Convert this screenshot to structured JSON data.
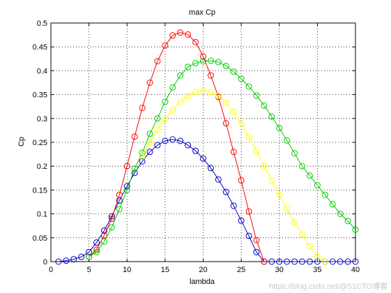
{
  "chart_data": {
    "type": "line",
    "title": "max Cp",
    "xlabel": "lambda",
    "ylabel": "Cp",
    "xlim": [
      0,
      40
    ],
    "ylim": [
      0,
      0.5
    ],
    "xticks": [
      0,
      5,
      10,
      15,
      20,
      25,
      30,
      35,
      40
    ],
    "yticks": [
      0,
      0.05,
      0.1,
      0.15,
      0.2,
      0.25,
      0.3,
      0.35,
      0.4,
      0.45,
      0.5
    ],
    "xtick_labels": [
      "0",
      "5",
      "10",
      "15",
      "20",
      "25",
      "30",
      "35",
      "40"
    ],
    "ytick_labels": [
      "0",
      "0.05",
      "0.1",
      "0.15",
      "0.2",
      "0.25",
      "0.3",
      "0.35",
      "0.4",
      "0.45",
      "0.5"
    ],
    "grid": true,
    "marker": "circle",
    "series": [
      {
        "color": "#0000bf",
        "x": [
          1,
          2,
          3,
          4,
          5,
          6,
          7,
          8,
          9,
          10,
          11,
          12,
          13,
          14,
          15,
          16,
          17,
          18,
          19,
          20,
          21,
          22,
          23,
          24,
          25,
          26,
          27,
          28,
          29,
          30,
          31,
          32,
          33,
          34,
          35,
          36,
          37,
          38,
          39,
          40
        ],
        "y": [
          0.0,
          0.002,
          0.005,
          0.01,
          0.02,
          0.04,
          0.065,
          0.095,
          0.128,
          0.158,
          0.186,
          0.21,
          0.23,
          0.244,
          0.253,
          0.256,
          0.253,
          0.244,
          0.232,
          0.216,
          0.196,
          0.172,
          0.146,
          0.117,
          0.086,
          0.054,
          0.02,
          0.0,
          0.0,
          0.0,
          0.0,
          0.0,
          0.0,
          0.0,
          0.0,
          0.0,
          0.0,
          0.0,
          0.0,
          0.0
        ]
      },
      {
        "color": "#ff0000",
        "x": [
          5,
          6,
          7,
          8,
          9,
          10,
          11,
          12,
          13,
          14,
          15,
          16,
          17,
          18,
          19,
          20,
          21,
          22,
          23,
          24,
          25,
          26,
          27,
          28
        ],
        "y": [
          0.01,
          0.025,
          0.055,
          0.09,
          0.14,
          0.2,
          0.262,
          0.322,
          0.375,
          0.42,
          0.453,
          0.474,
          0.48,
          0.476,
          0.46,
          0.43,
          0.39,
          0.345,
          0.29,
          0.23,
          0.17,
          0.105,
          0.045,
          0.0
        ]
      },
      {
        "color": "#00cc00",
        "x": [
          5,
          6,
          7,
          8,
          9,
          10,
          11,
          12,
          13,
          14,
          15,
          16,
          17,
          18,
          19,
          20,
          21,
          22,
          23,
          24,
          25,
          26,
          27,
          28,
          29,
          30,
          31,
          32,
          33,
          34,
          35,
          36,
          37,
          38,
          39,
          40
        ],
        "y": [
          0.01,
          0.02,
          0.042,
          0.072,
          0.11,
          0.15,
          0.195,
          0.228,
          0.268,
          0.3,
          0.335,
          0.365,
          0.39,
          0.408,
          0.416,
          0.42,
          0.421,
          0.418,
          0.41,
          0.398,
          0.383,
          0.367,
          0.348,
          0.327,
          0.304,
          0.28,
          0.254,
          0.227,
          0.2,
          0.18,
          0.16,
          0.14,
          0.12,
          0.1,
          0.085,
          0.067
        ]
      },
      {
        "color": "#ffff00",
        "x": [
          12,
          13,
          14,
          15,
          16,
          17,
          18,
          19,
          20,
          21,
          22,
          23,
          24,
          25,
          26,
          27,
          28,
          29,
          30,
          31,
          32,
          33,
          34,
          35,
          36
        ],
        "y": [
          0.22,
          0.25,
          0.277,
          0.298,
          0.318,
          0.335,
          0.347,
          0.355,
          0.358,
          0.355,
          0.347,
          0.333,
          0.314,
          0.29,
          0.262,
          0.232,
          0.2,
          0.17,
          0.14,
          0.11,
          0.083,
          0.057,
          0.032,
          0.01,
          0.0
        ]
      }
    ]
  },
  "watermark_text": "https://blog.csdn.net/@51CTO博客"
}
